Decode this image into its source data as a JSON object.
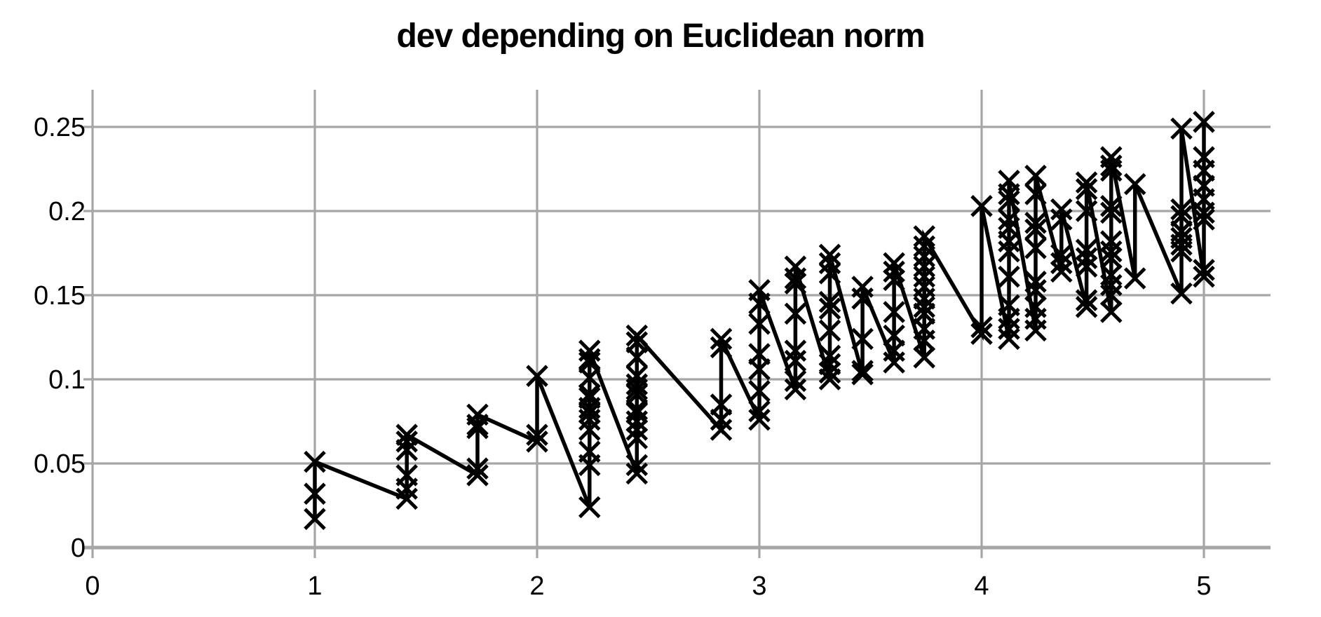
{
  "title": "dev depending on Euclidean norm",
  "chart_data": {
    "type": "line",
    "title": "dev depending on Euclidean norm",
    "xlabel": "",
    "ylabel": "",
    "xlim": [
      0,
      5.3
    ],
    "ylim": [
      0,
      0.27
    ],
    "grid": true,
    "legend": "none",
    "marker": "x",
    "marker_color": "#000000",
    "line_color": "#000000",
    "gridline_color": "#a6a6a6",
    "background_color": "#ffffff",
    "x_ticks": [
      {
        "v": 0,
        "label": "0"
      },
      {
        "v": 1,
        "label": "1"
      },
      {
        "v": 2,
        "label": "2"
      },
      {
        "v": 3,
        "label": "3"
      },
      {
        "v": 4,
        "label": "4"
      },
      {
        "v": 5,
        "label": "5"
      }
    ],
    "y_ticks": [
      {
        "v": 0,
        "label": "0"
      },
      {
        "v": 0.05,
        "label": "0.05"
      },
      {
        "v": 0.1,
        "label": "0.1"
      },
      {
        "v": 0.15,
        "label": "0.15"
      },
      {
        "v": 0.2,
        "label": "0.2"
      },
      {
        "v": 0.25,
        "label": "0.25"
      }
    ],
    "series": [
      {
        "name": "dev",
        "clusters": [
          {
            "x": 1.0,
            "values": [
              0.017,
              0.032,
              0.051
            ]
          },
          {
            "x": 1.414,
            "values": [
              0.029,
              0.035,
              0.043,
              0.058,
              0.063,
              0.067
            ]
          },
          {
            "x": 1.732,
            "values": [
              0.043,
              0.047,
              0.071,
              0.073,
              0.079
            ]
          },
          {
            "x": 2.0,
            "values": [
              0.063,
              0.067,
              0.102
            ]
          },
          {
            "x": 2.236,
            "values": [
              0.024,
              0.049,
              0.057,
              0.07,
              0.076,
              0.08,
              0.083,
              0.089,
              0.091,
              0.101,
              0.11,
              0.112,
              0.117
            ]
          },
          {
            "x": 2.449,
            "values": [
              0.044,
              0.049,
              0.065,
              0.07,
              0.075,
              0.08,
              0.082,
              0.091,
              0.094,
              0.097,
              0.102,
              0.113,
              0.122,
              0.126
            ]
          },
          {
            "x": 2.828,
            "values": [
              0.07,
              0.076,
              0.085,
              0.119,
              0.124
            ]
          },
          {
            "x": 3.0,
            "values": [
              0.076,
              0.081,
              0.093,
              0.106,
              0.115,
              0.133,
              0.145,
              0.153
            ]
          },
          {
            "x": 3.162,
            "values": [
              0.094,
              0.099,
              0.111,
              0.117,
              0.139,
              0.157,
              0.16,
              0.167
            ]
          },
          {
            "x": 3.317,
            "values": [
              0.1,
              0.104,
              0.109,
              0.114,
              0.129,
              0.142,
              0.146,
              0.163,
              0.169,
              0.174
            ]
          },
          {
            "x": 3.464,
            "values": [
              0.103,
              0.105,
              0.124,
              0.148,
              0.155
            ]
          },
          {
            "x": 3.606,
            "values": [
              0.11,
              0.117,
              0.126,
              0.14,
              0.159,
              0.164,
              0.169
            ]
          },
          {
            "x": 3.742,
            "values": [
              0.113,
              0.123,
              0.13,
              0.139,
              0.143,
              0.148,
              0.155,
              0.161,
              0.167,
              0.173,
              0.179,
              0.185
            ]
          },
          {
            "x": 4.0,
            "values": [
              0.127,
              0.131,
              0.203
            ]
          },
          {
            "x": 4.123,
            "values": [
              0.124,
              0.13,
              0.136,
              0.144,
              0.161,
              0.176,
              0.182,
              0.19,
              0.195,
              0.206,
              0.21,
              0.218
            ]
          },
          {
            "x": 4.243,
            "values": [
              0.129,
              0.136,
              0.143,
              0.153,
              0.158,
              0.178,
              0.189,
              0.193,
              0.21,
              0.221
            ]
          },
          {
            "x": 4.359,
            "values": [
              0.164,
              0.169,
              0.174,
              0.195,
              0.201
            ]
          },
          {
            "x": 4.472,
            "values": [
              0.143,
              0.147,
              0.167,
              0.172,
              0.177,
              0.2,
              0.213,
              0.217
            ]
          },
          {
            "x": 4.583,
            "values": [
              0.14,
              0.15,
              0.156,
              0.162,
              0.172,
              0.176,
              0.182,
              0.199,
              0.203,
              0.224,
              0.227,
              0.232
            ]
          },
          {
            "x": 4.69,
            "values": [
              0.16,
              0.216
            ]
          },
          {
            "x": 4.899,
            "values": [
              0.151,
              0.176,
              0.18,
              0.184,
              0.188,
              0.197,
              0.201,
              0.249
            ]
          },
          {
            "x": 5.0,
            "values": [
              0.161,
              0.165,
              0.195,
              0.199,
              0.207,
              0.215,
              0.224,
              0.232,
              0.253
            ]
          }
        ]
      }
    ]
  }
}
